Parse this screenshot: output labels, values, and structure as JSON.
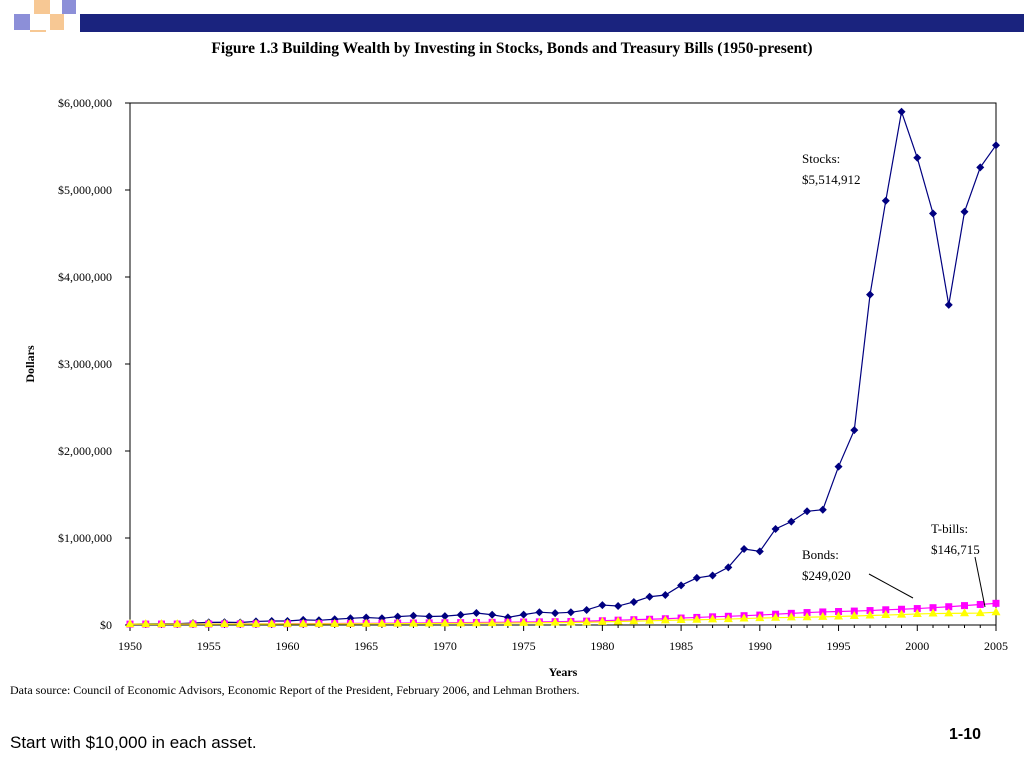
{
  "slide": {
    "caption": "Start with $10,000 in each asset.",
    "slide_number": "1-10",
    "source_note": "Data source: Council of Economic Advisors, Economic Report of the President, February 2006, and Lehman Brothers.",
    "colors": {
      "header_bar": "#1a237e",
      "deco_blue": "#8c8fd8",
      "deco_orange": "#f7c894"
    }
  },
  "chart_data": {
    "type": "line",
    "title": "Figure 1.3 Building Wealth by Investing in Stocks, Bonds and Treasury Bills (1950-present)",
    "xlabel": "Years",
    "ylabel": "Dollars",
    "xlim": [
      1950,
      2005
    ],
    "ylim": [
      0,
      6000000
    ],
    "x_ticks": [
      1950,
      1955,
      1960,
      1965,
      1970,
      1975,
      1980,
      1985,
      1990,
      1995,
      2000,
      2005
    ],
    "y_ticks": [
      0,
      1000000,
      2000000,
      3000000,
      4000000,
      5000000,
      6000000
    ],
    "y_tick_labels": [
      "$0",
      "$1,000,000",
      "$2,000,000",
      "$3,000,000",
      "$4,000,000",
      "$5,000,000",
      "$6,000,000"
    ],
    "grid": false,
    "legend": "none",
    "x": [
      1950,
      1951,
      1952,
      1953,
      1954,
      1955,
      1956,
      1957,
      1958,
      1959,
      1960,
      1961,
      1962,
      1963,
      1964,
      1965,
      1966,
      1967,
      1968,
      1969,
      1970,
      1971,
      1972,
      1973,
      1974,
      1975,
      1976,
      1977,
      1978,
      1979,
      1980,
      1981,
      1982,
      1983,
      1984,
      1985,
      1986,
      1987,
      1988,
      1989,
      1990,
      1991,
      1992,
      1993,
      1994,
      1995,
      1996,
      1997,
      1998,
      1999,
      2000,
      2001,
      2002,
      2003,
      2004,
      2005
    ],
    "series": [
      {
        "name": "Stocks",
        "color": "#000080",
        "marker": "diamond",
        "values": [
          10000,
          13000,
          15000,
          15000,
          23000,
          30000,
          32000,
          29000,
          41000,
          46000,
          46000,
          59000,
          54000,
          66000,
          77000,
          86000,
          77000,
          96000,
          107000,
          98000,
          102000,
          116000,
          138000,
          118000,
          87000,
          119000,
          147000,
          137000,
          146000,
          173000,
          229000,
          218000,
          265000,
          325000,
          345000,
          456000,
          541000,
          569000,
          663000,
          873000,
          846000,
          1104000,
          1188000,
          1307000,
          1325000,
          1821000,
          2240000,
          3797000,
          4877000,
          5900000,
          5370000,
          4730000,
          3680000,
          4750000,
          5260000,
          5514912
        ]
      },
      {
        "name": "Bonds",
        "color": "#ff00ff",
        "marker": "square",
        "values": [
          10000,
          10500,
          10900,
          11100,
          11600,
          11900,
          12400,
          12900,
          13400,
          13900,
          14600,
          15400,
          16300,
          17300,
          18400,
          19500,
          20600,
          21800,
          23000,
          24300,
          25800,
          27300,
          28900,
          30600,
          32400,
          34200,
          36100,
          38100,
          40500,
          44300,
          48800,
          55500,
          61000,
          66000,
          72000,
          80000,
          87000,
          94000,
          100000,
          107000,
          114000,
          124000,
          134000,
          143000,
          150000,
          155000,
          160000,
          166000,
          175000,
          181000,
          189000,
          199000,
          210000,
          223000,
          236000,
          249020
        ]
      },
      {
        "name": "T-bills",
        "color": "#ffff00",
        "marker": "triangle",
        "values": [
          10000,
          10150,
          10330,
          10520,
          10610,
          10780,
          11060,
          11410,
          11570,
          11920,
          12230,
          12500,
          12840,
          13240,
          13720,
          14270,
          14960,
          15590,
          16420,
          17500,
          18580,
          19390,
          20150,
          21570,
          23150,
          24520,
          25780,
          27140,
          29140,
          32000,
          35600,
          40200,
          44500,
          48300,
          53100,
          57200,
          60700,
          64100,
          68200,
          74000,
          79600,
          84000,
          87000,
          89600,
          93100,
          98400,
          103600,
          109000,
          114400,
          119700,
          126900,
          131500,
          133600,
          135100,
          137000,
          146715
        ]
      }
    ],
    "annotations": [
      {
        "label": "Stocks:",
        "value": "$5,514,912"
      },
      {
        "label": "Bonds:",
        "value": "$249,020"
      },
      {
        "label": "T-bills:",
        "value": "$146,715"
      }
    ]
  }
}
